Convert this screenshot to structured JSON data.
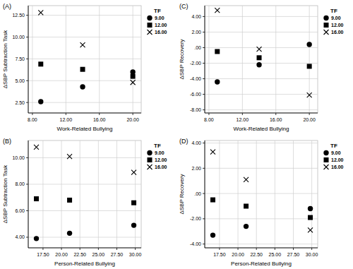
{
  "chart_data": [
    {
      "type": "scatter",
      "title": "(A)",
      "x_label": "Work-Related Bullying",
      "y_label": "ΔSBP Subtraction Task",
      "legend_title": "TF",
      "legend": "top-right",
      "grid": true,
      "xlim": [
        7.5,
        21
      ],
      "ylim": [
        1.3,
        13.6
      ],
      "xticks": [
        {
          "value": 8,
          "label": "8.00"
        },
        {
          "value": 12,
          "label": "12.00"
        },
        {
          "value": 16,
          "label": "16.00"
        },
        {
          "value": 20,
          "label": "20.00"
        }
      ],
      "yticks": [
        {
          "value": 2.5,
          "label": "2.50"
        },
        {
          "value": 5,
          "label": "5.00"
        },
        {
          "value": 7.5,
          "label": "7.50"
        },
        {
          "value": 10,
          "label": "10.00"
        },
        {
          "value": 12.5,
          "label": "12.50"
        }
      ],
      "x": [
        9,
        14,
        20
      ],
      "series": [
        {
          "name": "9.00",
          "color": "#000000",
          "marker": "circle",
          "values": [
            2.6,
            4.3,
            6.0
          ]
        },
        {
          "name": "12.00",
          "color": "#000000",
          "marker": "square",
          "values": [
            6.9,
            6.3,
            5.5
          ]
        },
        {
          "name": "16.00",
          "color": "#000000",
          "marker": "x",
          "values": [
            12.8,
            9.1,
            4.8
          ]
        }
      ]
    },
    {
      "type": "scatter",
      "title": "(B)",
      "x_label": "Person-Related Bullying",
      "y_label": "ΔSBP Subtraction Task",
      "legend_title": "TF",
      "legend": "top-right",
      "grid": true,
      "xlim": [
        15.5,
        30.8
      ],
      "ylim": [
        3.2,
        11.3
      ],
      "xticks": [
        {
          "value": 17.5,
          "label": "17.50"
        },
        {
          "value": 20,
          "label": "20.00"
        },
        {
          "value": 22.5,
          "label": "22.50"
        },
        {
          "value": 25,
          "label": "25.00"
        },
        {
          "value": 27.5,
          "label": "27.50"
        },
        {
          "value": 30,
          "label": "30.00"
        }
      ],
      "yticks": [
        {
          "value": 4,
          "label": "4.00"
        },
        {
          "value": 6,
          "label": "6.00"
        },
        {
          "value": 8,
          "label": "8.00"
        },
        {
          "value": 10,
          "label": "10.00"
        }
      ],
      "x": [
        16.6,
        21.1,
        29.8
      ],
      "series": [
        {
          "name": "9.00",
          "color": "#000000",
          "marker": "circle",
          "values": [
            3.9,
            4.3,
            4.9
          ]
        },
        {
          "name": "12.00",
          "color": "#000000",
          "marker": "square",
          "values": [
            6.9,
            6.8,
            6.6
          ]
        },
        {
          "name": "16.00",
          "color": "#000000",
          "marker": "x",
          "values": [
            10.8,
            10.1,
            8.9
          ]
        }
      ]
    },
    {
      "type": "scatter",
      "title": "(C)",
      "x_label": "Work-Related Bullying",
      "y_label": "ΔSBP Recovery",
      "legend_title": "TF",
      "legend": "top-right",
      "grid": true,
      "xlim": [
        7.5,
        21
      ],
      "ylim": [
        -8.4,
        5.4
      ],
      "xticks": [
        {
          "value": 8,
          "label": "8.00"
        },
        {
          "value": 12,
          "label": "12.00"
        },
        {
          "value": 16,
          "label": "16.00"
        },
        {
          "value": 20,
          "label": "20.00"
        }
      ],
      "yticks": [
        {
          "value": -8,
          "label": "-8.00"
        },
        {
          "value": -6,
          "label": "-6.00"
        },
        {
          "value": -4,
          "label": "-4.00"
        },
        {
          "value": -2,
          "label": "-2.00"
        },
        {
          "value": 0,
          "label": ".00"
        },
        {
          "value": 2,
          "label": "2.00"
        },
        {
          "value": 4,
          "label": "4.00"
        }
      ],
      "x": [
        9,
        14,
        20
      ],
      "series": [
        {
          "name": "9.00",
          "color": "#000000",
          "marker": "circle",
          "values": [
            -4.4,
            -2.2,
            0.4
          ]
        },
        {
          "name": "12.00",
          "color": "#000000",
          "marker": "square",
          "values": [
            -0.5,
            -1.3,
            -2.4
          ]
        },
        {
          "name": "16.00",
          "color": "#000000",
          "marker": "x",
          "values": [
            4.8,
            -0.2,
            -6.1
          ]
        }
      ]
    },
    {
      "type": "scatter",
      "title": "(D)",
      "x_label": "Person-Related Bullying",
      "y_label": "ΔSBP Recovery",
      "legend_title": "TF",
      "legend": "top-right",
      "grid": true,
      "xlim": [
        15.5,
        30.8
      ],
      "ylim": [
        -4.3,
        4.2
      ],
      "xticks": [
        {
          "value": 17.5,
          "label": "17.50"
        },
        {
          "value": 20,
          "label": "20.00"
        },
        {
          "value": 22.5,
          "label": "22.50"
        },
        {
          "value": 25,
          "label": "25.00"
        },
        {
          "value": 27.5,
          "label": "27.50"
        },
        {
          "value": 30,
          "label": "30.00"
        }
      ],
      "yticks": [
        {
          "value": -4,
          "label": "-4.00"
        },
        {
          "value": -2,
          "label": "-2.00"
        },
        {
          "value": 0,
          "label": ".00"
        },
        {
          "value": 2,
          "label": "2.00"
        },
        {
          "value": 4,
          "label": "4.00"
        }
      ],
      "x": [
        16.6,
        21.1,
        29.8
      ],
      "series": [
        {
          "name": "9.00",
          "color": "#000000",
          "marker": "circle",
          "values": [
            -3.3,
            -2.6,
            -1.2
          ]
        },
        {
          "name": "12.00",
          "color": "#000000",
          "marker": "square",
          "values": [
            -0.5,
            -1.0,
            -1.9
          ]
        },
        {
          "name": "16.00",
          "color": "#000000",
          "marker": "x",
          "values": [
            3.3,
            1.1,
            -2.9
          ]
        }
      ]
    }
  ]
}
